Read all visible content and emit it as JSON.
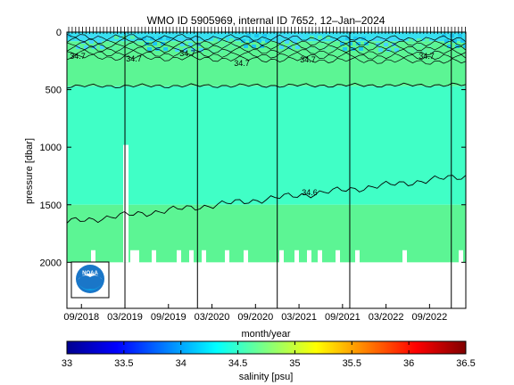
{
  "chart_data": {
    "type": "heatmap",
    "title": "WMO ID 5905969, internal ID 7652, 12–Jan–2024",
    "xlabel": "month/year",
    "ylabel": "pressure [dbar]",
    "x_ticks": [
      "09/2018",
      "03/2019",
      "09/2019",
      "03/2020",
      "09/2020",
      "03/2021",
      "09/2021",
      "03/2022",
      "09/2022"
    ],
    "x_range": [
      "2018-07",
      "2023-02"
    ],
    "y_ticks": [
      0,
      500,
      1000,
      1500,
      2000
    ],
    "ylim": [
      2400,
      0
    ],
    "y_reversed": true,
    "colorbar": {
      "label": "salinity [psu]",
      "ticks": [
        33,
        33.5,
        34,
        34.5,
        35,
        35.5,
        36,
        36.5
      ],
      "range": [
        33,
        36.5
      ],
      "colors": [
        "#00008f",
        "#0000ff",
        "#0080ff",
        "#00ffff",
        "#80ff80",
        "#ffff00",
        "#ff8000",
        "#ff0000",
        "#800000"
      ]
    },
    "layers": [
      {
        "from_pressure": 0,
        "to_pressure": 80,
        "salinity": "34.2-34.5",
        "color": "#38e0f0"
      },
      {
        "from_pressure": 80,
        "to_pressure": 470,
        "salinity": "34.6-34.7",
        "color": "#5cf594"
      },
      {
        "from_pressure": 470,
        "to_pressure": 1500,
        "salinity": "34.5-34.6",
        "color": "#40ffc6"
      },
      {
        "from_pressure": 1500,
        "to_pressure": 2000,
        "salinity": "34.6-34.7",
        "color": "#5cf594"
      }
    ],
    "contours": [
      {
        "label": "34.7",
        "pressure_start": 470,
        "pressure_end": 460
      },
      {
        "label": "34.6",
        "pressure_start": 1650,
        "pressure_end": 1250
      }
    ],
    "contour_labels": [
      "34.7",
      "34.7",
      "34.7",
      "34.7",
      "34.7",
      "34.7",
      "34.6"
    ],
    "vertical_lines": [
      "2019-03",
      "2020-01",
      "2020-12",
      "2021-10",
      "2022-12"
    ],
    "data_gap": {
      "date": "2019-03",
      "pressure_from": 980,
      "pressure_to": 2000
    },
    "logo": "NOAA"
  }
}
